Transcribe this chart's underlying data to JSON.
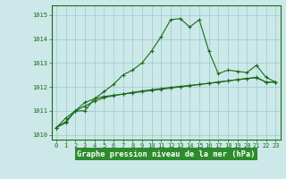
{
  "title": "Graphe pression niveau de la mer (hPa)",
  "xlabel_hours": [
    0,
    1,
    2,
    3,
    4,
    5,
    6,
    7,
    8,
    9,
    10,
    11,
    12,
    13,
    14,
    15,
    16,
    17,
    18,
    19,
    20,
    21,
    22,
    23
  ],
  "series1": [
    1010.3,
    1010.7,
    1011.0,
    1011.0,
    1011.5,
    1011.8,
    1012.1,
    1012.5,
    1012.7,
    1013.0,
    1013.5,
    1014.1,
    1014.8,
    1014.85,
    1014.5,
    1014.8,
    1013.5,
    1012.55,
    1012.7,
    1012.65,
    1012.6,
    1012.9,
    1012.4,
    1012.2
  ],
  "series2": [
    1010.3,
    1010.5,
    1011.0,
    1011.35,
    1011.5,
    1011.6,
    1011.65,
    1011.7,
    1011.75,
    1011.8,
    1011.85,
    1011.9,
    1011.95,
    1012.0,
    1012.05,
    1012.1,
    1012.15,
    1012.2,
    1012.25,
    1012.3,
    1012.35,
    1012.4,
    1012.2,
    1012.2
  ],
  "series3": [
    1010.3,
    1010.55,
    1011.0,
    1011.2,
    1011.4,
    1011.55,
    1011.63,
    1011.7,
    1011.77,
    1011.83,
    1011.88,
    1011.93,
    1011.98,
    1012.02,
    1012.06,
    1012.1,
    1012.15,
    1012.2,
    1012.25,
    1012.3,
    1012.35,
    1012.38,
    1012.2,
    1012.2
  ],
  "ylim": [
    1009.8,
    1015.4
  ],
  "yticks": [
    1010,
    1011,
    1012,
    1013,
    1014,
    1015
  ],
  "line_color": "#1a6b1a",
  "bg_color": "#cce8e8",
  "grid_color": "#99cccc",
  "title_bg": "#2d8b2d",
  "marker": "+",
  "markersize": 3.5,
  "linewidth": 0.8,
  "tick_fontsize": 5.0,
  "title_fontsize": 6.2
}
